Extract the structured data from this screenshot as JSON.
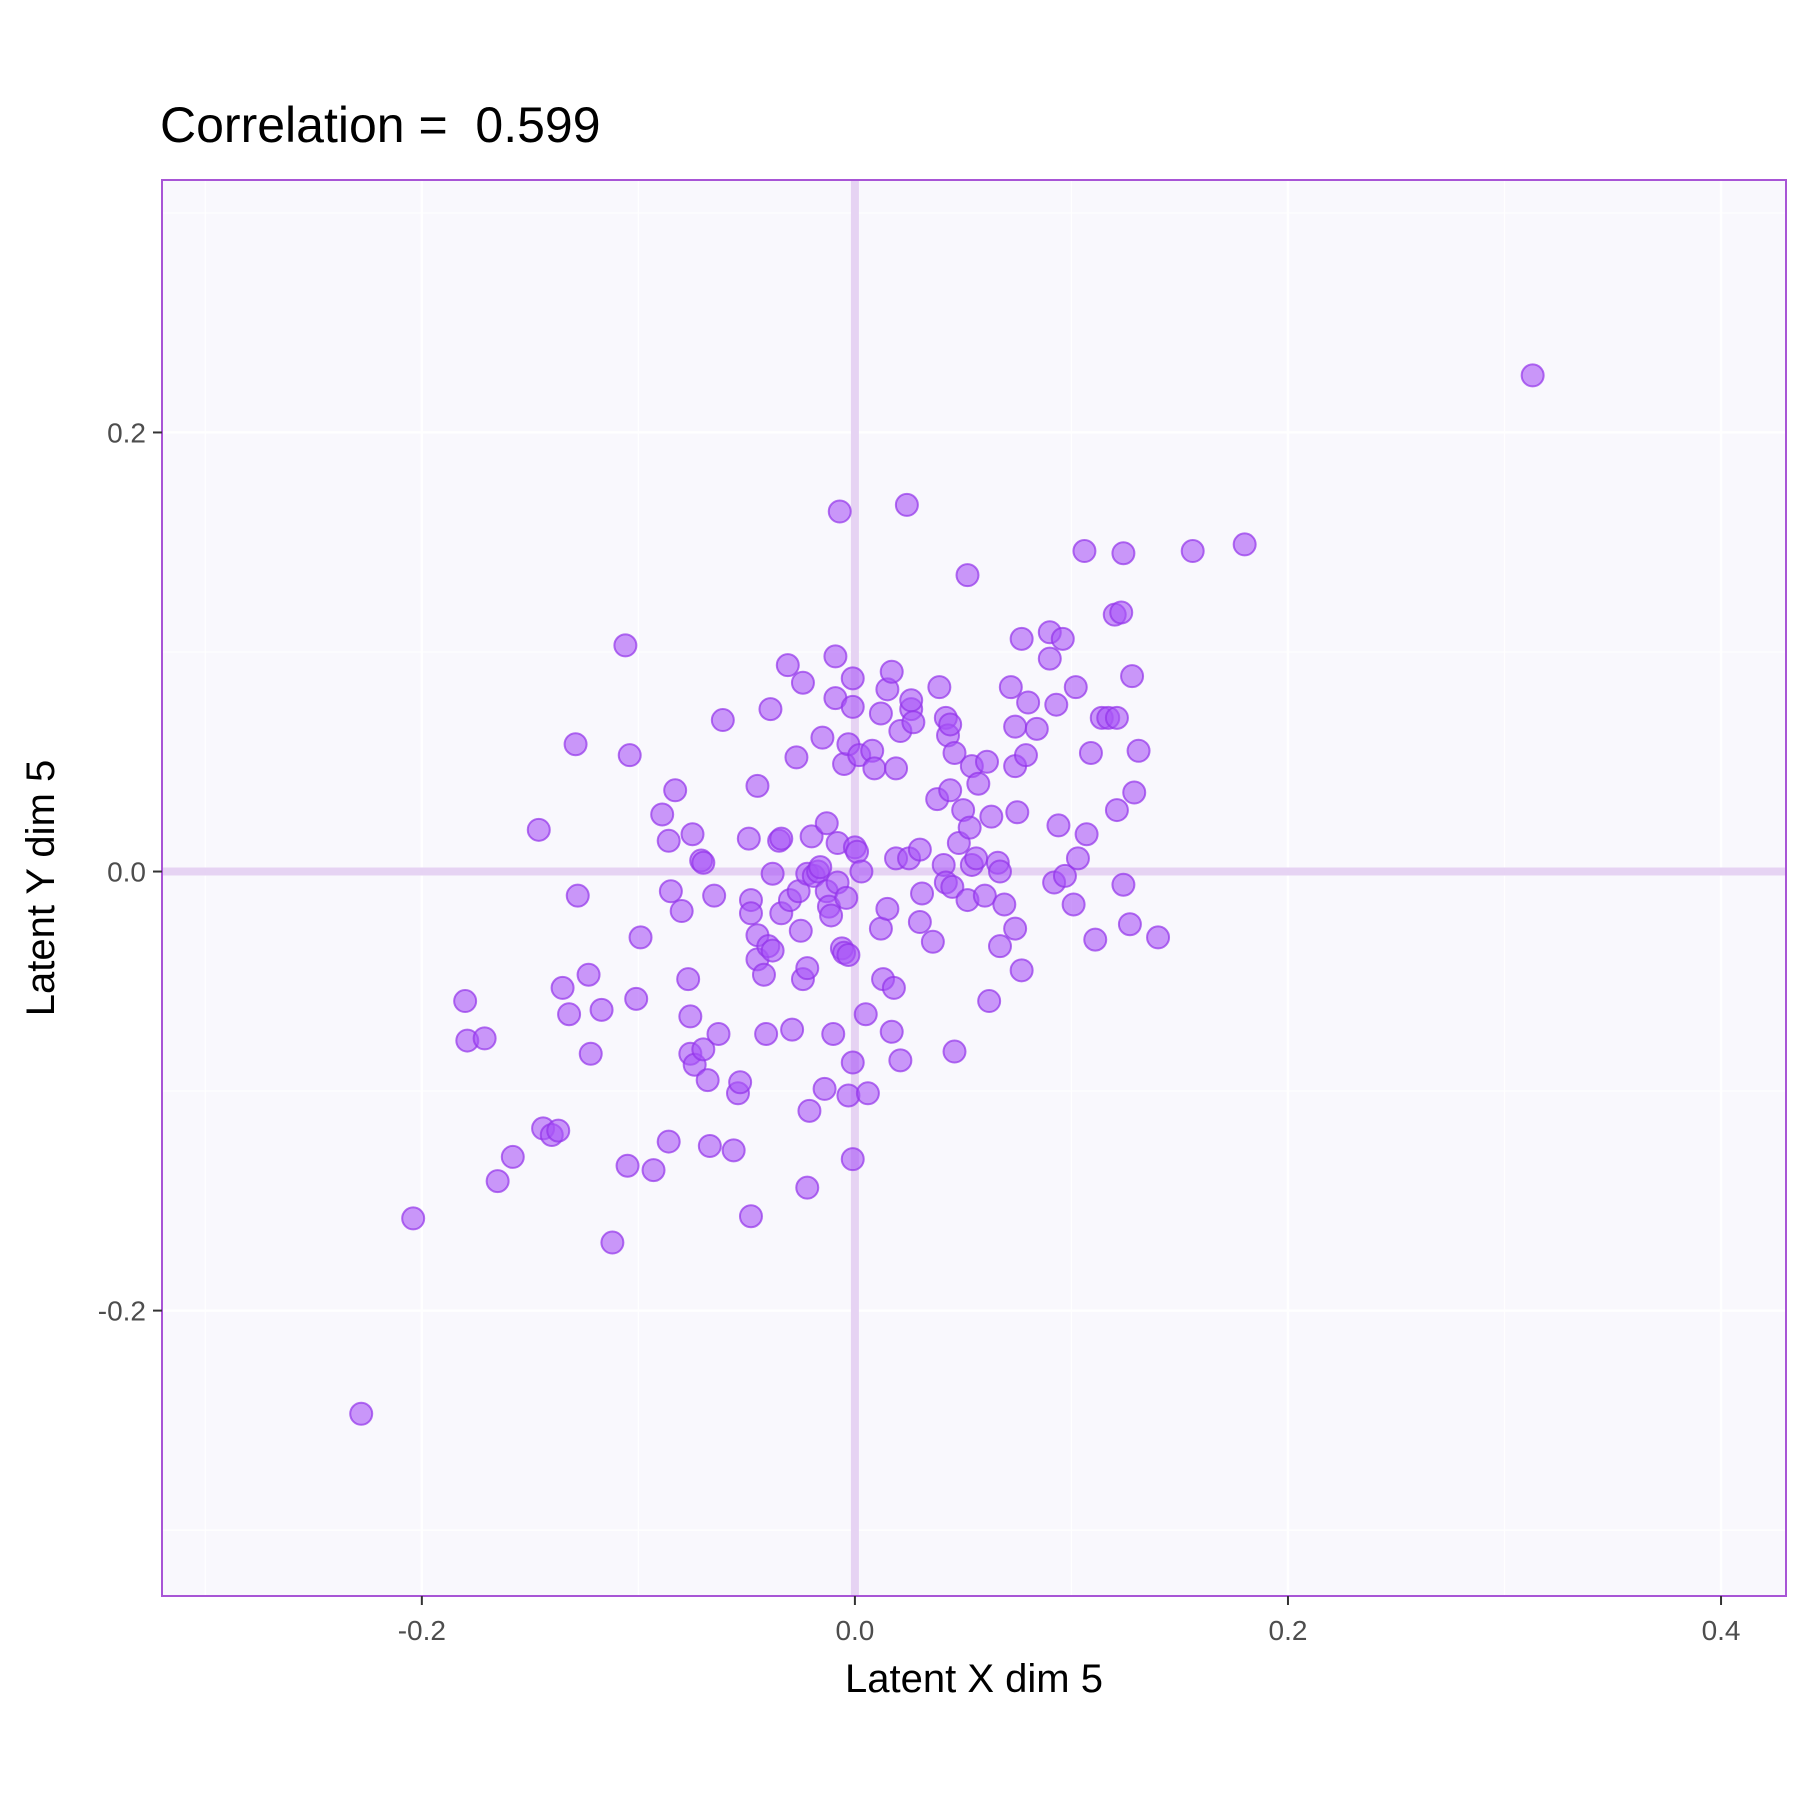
{
  "chart_data": {
    "type": "scatter",
    "title": "Correlation =  0.599",
    "xlabel": "Latent X dim 5",
    "ylabel": "Latent Y dim 5",
    "xlim": [
      -0.32,
      0.43
    ],
    "ylim": [
      -0.33,
      0.315
    ],
    "x_ticks": [
      -0.2,
      0.0,
      0.2,
      0.4
    ],
    "x_tick_labels": [
      "-0.2",
      "0.0",
      "0.2",
      "0.4"
    ],
    "y_ticks": [
      -0.2,
      0.0,
      0.2
    ],
    "y_tick_labels": [
      "-0.2",
      "0.0",
      "0.2"
    ],
    "grid": true,
    "reference_lines": {
      "x": 0,
      "y": 0
    },
    "colors": {
      "point": "#a855f7",
      "point_stroke": "#9333ea",
      "panel_background": "#f9f8fd",
      "panel_border": "#a855d6",
      "grid": "#ffffff",
      "reference_line": "#e6d3f3"
    },
    "points": [
      {
        "x": 0.313,
        "y": 0.226
      },
      {
        "x": -0.228,
        "y": -0.247
      },
      {
        "x": -0.204,
        "y": -0.158
      },
      {
        "x": -0.112,
        "y": -0.169
      },
      {
        "x": -0.18,
        "y": -0.059
      },
      {
        "x": -0.179,
        "y": -0.077
      },
      {
        "x": -0.171,
        "y": -0.076
      },
      {
        "x": -0.165,
        "y": -0.141
      },
      {
        "x": -0.158,
        "y": -0.13
      },
      {
        "x": -0.146,
        "y": 0.019
      },
      {
        "x": -0.144,
        "y": -0.117
      },
      {
        "x": -0.14,
        "y": -0.12
      },
      {
        "x": -0.137,
        "y": -0.118
      },
      {
        "x": -0.135,
        "y": -0.053
      },
      {
        "x": -0.132,
        "y": -0.065
      },
      {
        "x": -0.129,
        "y": 0.058
      },
      {
        "x": -0.128,
        "y": -0.011
      },
      {
        "x": -0.123,
        "y": -0.047
      },
      {
        "x": -0.122,
        "y": -0.083
      },
      {
        "x": -0.117,
        "y": -0.063
      },
      {
        "x": -0.106,
        "y": 0.103
      },
      {
        "x": -0.105,
        "y": -0.134
      },
      {
        "x": -0.104,
        "y": 0.053
      },
      {
        "x": -0.101,
        "y": -0.058
      },
      {
        "x": -0.099,
        "y": -0.03
      },
      {
        "x": -0.093,
        "y": -0.136
      },
      {
        "x": -0.089,
        "y": 0.026
      },
      {
        "x": -0.086,
        "y": 0.014
      },
      {
        "x": -0.086,
        "y": -0.123
      },
      {
        "x": -0.085,
        "y": -0.009
      },
      {
        "x": -0.083,
        "y": 0.037
      },
      {
        "x": -0.08,
        "y": -0.018
      },
      {
        "x": -0.077,
        "y": -0.049
      },
      {
        "x": -0.076,
        "y": -0.066
      },
      {
        "x": -0.076,
        "y": -0.083
      },
      {
        "x": -0.075,
        "y": 0.017
      },
      {
        "x": -0.074,
        "y": -0.088
      },
      {
        "x": -0.071,
        "y": 0.005
      },
      {
        "x": -0.07,
        "y": 0.004
      },
      {
        "x": -0.07,
        "y": -0.081
      },
      {
        "x": -0.068,
        "y": -0.095
      },
      {
        "x": -0.067,
        "y": -0.125
      },
      {
        "x": -0.065,
        "y": -0.011
      },
      {
        "x": -0.063,
        "y": -0.074
      },
      {
        "x": -0.061,
        "y": 0.069
      },
      {
        "x": -0.056,
        "y": -0.127
      },
      {
        "x": -0.054,
        "y": -0.101
      },
      {
        "x": -0.053,
        "y": -0.096
      },
      {
        "x": -0.048,
        "y": -0.157
      },
      {
        "x": -0.049,
        "y": 0.015
      },
      {
        "x": -0.048,
        "y": -0.013
      },
      {
        "x": -0.048,
        "y": -0.019
      },
      {
        "x": -0.045,
        "y": 0.039
      },
      {
        "x": -0.045,
        "y": -0.029
      },
      {
        "x": -0.045,
        "y": -0.04
      },
      {
        "x": -0.042,
        "y": -0.047
      },
      {
        "x": -0.041,
        "y": -0.074
      },
      {
        "x": -0.04,
        "y": -0.034
      },
      {
        "x": -0.039,
        "y": 0.074
      },
      {
        "x": -0.038,
        "y": -0.036
      },
      {
        "x": -0.038,
        "y": -0.001
      },
      {
        "x": -0.035,
        "y": 0.014
      },
      {
        "x": -0.034,
        "y": 0.015
      },
      {
        "x": -0.034,
        "y": -0.019
      },
      {
        "x": -0.031,
        "y": 0.094
      },
      {
        "x": -0.03,
        "y": -0.013
      },
      {
        "x": -0.029,
        "y": -0.072
      },
      {
        "x": -0.027,
        "y": 0.052
      },
      {
        "x": -0.026,
        "y": -0.009
      },
      {
        "x": -0.025,
        "y": -0.027
      },
      {
        "x": -0.024,
        "y": 0.086
      },
      {
        "x": -0.024,
        "y": -0.049
      },
      {
        "x": -0.022,
        "y": -0.044
      },
      {
        "x": -0.022,
        "y": -0.001
      },
      {
        "x": -0.022,
        "y": -0.144
      },
      {
        "x": -0.021,
        "y": -0.109
      },
      {
        "x": -0.02,
        "y": 0.016
      },
      {
        "x": -0.019,
        "y": -0.002
      },
      {
        "x": -0.017,
        "y": 0.0
      },
      {
        "x": -0.016,
        "y": 0.002
      },
      {
        "x": -0.015,
        "y": 0.061
      },
      {
        "x": -0.014,
        "y": -0.099
      },
      {
        "x": -0.013,
        "y": -0.009
      },
      {
        "x": -0.013,
        "y": 0.022
      },
      {
        "x": -0.012,
        "y": -0.016
      },
      {
        "x": -0.011,
        "y": -0.02
      },
      {
        "x": -0.01,
        "y": -0.074
      },
      {
        "x": -0.009,
        "y": 0.079
      },
      {
        "x": -0.009,
        "y": 0.098
      },
      {
        "x": -0.008,
        "y": -0.005
      },
      {
        "x": -0.008,
        "y": 0.013
      },
      {
        "x": -0.007,
        "y": 0.164
      },
      {
        "x": -0.006,
        "y": -0.035
      },
      {
        "x": -0.005,
        "y": -0.037
      },
      {
        "x": -0.005,
        "y": 0.049
      },
      {
        "x": -0.004,
        "y": -0.012
      },
      {
        "x": -0.003,
        "y": 0.058
      },
      {
        "x": -0.003,
        "y": -0.102
      },
      {
        "x": -0.003,
        "y": -0.038
      },
      {
        "x": -0.001,
        "y": 0.088
      },
      {
        "x": -0.001,
        "y": 0.075
      },
      {
        "x": -0.001,
        "y": -0.087
      },
      {
        "x": -0.001,
        "y": -0.131
      },
      {
        "x": 0.0,
        "y": 0.011
      },
      {
        "x": 0.001,
        "y": 0.009
      },
      {
        "x": 0.002,
        "y": 0.053
      },
      {
        "x": 0.003,
        "y": 0.0
      },
      {
        "x": 0.005,
        "y": -0.065
      },
      {
        "x": 0.006,
        "y": -0.101
      },
      {
        "x": 0.008,
        "y": 0.055
      },
      {
        "x": 0.009,
        "y": 0.047
      },
      {
        "x": 0.012,
        "y": -0.026
      },
      {
        "x": 0.012,
        "y": 0.072
      },
      {
        "x": 0.013,
        "y": -0.049
      },
      {
        "x": 0.015,
        "y": -0.017
      },
      {
        "x": 0.015,
        "y": 0.083
      },
      {
        "x": 0.017,
        "y": 0.091
      },
      {
        "x": 0.017,
        "y": -0.073
      },
      {
        "x": 0.018,
        "y": -0.053
      },
      {
        "x": 0.019,
        "y": 0.047
      },
      {
        "x": 0.019,
        "y": 0.006
      },
      {
        "x": 0.021,
        "y": 0.064
      },
      {
        "x": 0.021,
        "y": -0.086
      },
      {
        "x": 0.024,
        "y": 0.167
      },
      {
        "x": 0.025,
        "y": 0.006
      },
      {
        "x": 0.026,
        "y": 0.074
      },
      {
        "x": 0.026,
        "y": 0.078
      },
      {
        "x": 0.027,
        "y": 0.068
      },
      {
        "x": 0.03,
        "y": 0.01
      },
      {
        "x": 0.03,
        "y": -0.023
      },
      {
        "x": 0.031,
        "y": -0.01
      },
      {
        "x": 0.036,
        "y": -0.032
      },
      {
        "x": 0.038,
        "y": 0.033
      },
      {
        "x": 0.039,
        "y": 0.084
      },
      {
        "x": 0.041,
        "y": 0.003
      },
      {
        "x": 0.042,
        "y": 0.07
      },
      {
        "x": 0.042,
        "y": -0.005
      },
      {
        "x": 0.043,
        "y": 0.062
      },
      {
        "x": 0.044,
        "y": 0.067
      },
      {
        "x": 0.044,
        "y": 0.037
      },
      {
        "x": 0.045,
        "y": -0.007
      },
      {
        "x": 0.046,
        "y": 0.054
      },
      {
        "x": 0.046,
        "y": -0.082
      },
      {
        "x": 0.048,
        "y": 0.013
      },
      {
        "x": 0.05,
        "y": 0.028
      },
      {
        "x": 0.052,
        "y": 0.135
      },
      {
        "x": 0.052,
        "y": -0.013
      },
      {
        "x": 0.053,
        "y": 0.02
      },
      {
        "x": 0.054,
        "y": 0.003
      },
      {
        "x": 0.054,
        "y": 0.048
      },
      {
        "x": 0.056,
        "y": 0.006
      },
      {
        "x": 0.057,
        "y": 0.04
      },
      {
        "x": 0.06,
        "y": -0.011
      },
      {
        "x": 0.061,
        "y": 0.05
      },
      {
        "x": 0.062,
        "y": -0.059
      },
      {
        "x": 0.063,
        "y": 0.025
      },
      {
        "x": 0.066,
        "y": 0.004
      },
      {
        "x": 0.067,
        "y": -0.034
      },
      {
        "x": 0.067,
        "y": 0.0
      },
      {
        "x": 0.069,
        "y": -0.015
      },
      {
        "x": 0.072,
        "y": 0.084
      },
      {
        "x": 0.074,
        "y": -0.026
      },
      {
        "x": 0.074,
        "y": 0.048
      },
      {
        "x": 0.074,
        "y": 0.066
      },
      {
        "x": 0.075,
        "y": 0.027
      },
      {
        "x": 0.077,
        "y": 0.106
      },
      {
        "x": 0.077,
        "y": -0.045
      },
      {
        "x": 0.079,
        "y": 0.053
      },
      {
        "x": 0.08,
        "y": 0.077
      },
      {
        "x": 0.084,
        "y": 0.065
      },
      {
        "x": 0.09,
        "y": 0.097
      },
      {
        "x": 0.09,
        "y": 0.109
      },
      {
        "x": 0.092,
        "y": -0.005
      },
      {
        "x": 0.093,
        "y": 0.076
      },
      {
        "x": 0.094,
        "y": 0.021
      },
      {
        "x": 0.096,
        "y": 0.106
      },
      {
        "x": 0.097,
        "y": -0.002
      },
      {
        "x": 0.101,
        "y": -0.015
      },
      {
        "x": 0.102,
        "y": 0.084
      },
      {
        "x": 0.103,
        "y": 0.006
      },
      {
        "x": 0.106,
        "y": 0.146
      },
      {
        "x": 0.107,
        "y": 0.017
      },
      {
        "x": 0.109,
        "y": 0.054
      },
      {
        "x": 0.111,
        "y": -0.031
      },
      {
        "x": 0.114,
        "y": 0.07
      },
      {
        "x": 0.117,
        "y": 0.07
      },
      {
        "x": 0.12,
        "y": 0.117
      },
      {
        "x": 0.121,
        "y": 0.07
      },
      {
        "x": 0.121,
        "y": 0.028
      },
      {
        "x": 0.123,
        "y": 0.118
      },
      {
        "x": 0.124,
        "y": -0.006
      },
      {
        "x": 0.124,
        "y": 0.145
      },
      {
        "x": 0.127,
        "y": -0.024
      },
      {
        "x": 0.128,
        "y": 0.089
      },
      {
        "x": 0.129,
        "y": 0.036
      },
      {
        "x": 0.131,
        "y": 0.055
      },
      {
        "x": 0.14,
        "y": -0.03
      },
      {
        "x": 0.156,
        "y": 0.146
      },
      {
        "x": 0.18,
        "y": 0.149
      }
    ]
  }
}
